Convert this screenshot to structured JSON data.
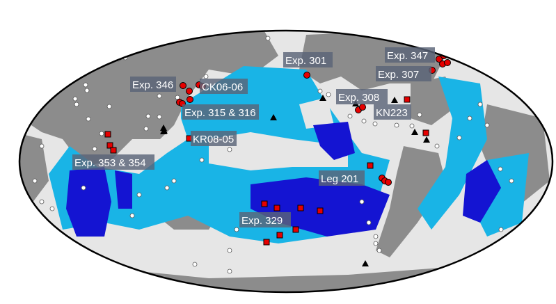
{
  "map": {
    "projection": "mollweide",
    "colors": {
      "land": "#8c8c8c",
      "seafloor": "#e6e6e6",
      "light_blue_zone": "#19b4e6",
      "dark_blue_zone": "#1414d2",
      "site_circle": "#e60000",
      "site_square": "#e60000",
      "triangle": "#000000",
      "white_dot": "#ffffff",
      "label_box": "#5a6478"
    },
    "labels": [
      {
        "id": "exp-301",
        "text": "Exp. 301"
      },
      {
        "id": "exp-347",
        "text": "Exp. 347"
      },
      {
        "id": "exp-307",
        "text": "Exp. 307"
      },
      {
        "id": "exp-346",
        "text": "Exp. 346"
      },
      {
        "id": "ck06-06",
        "text": "CK06-06"
      },
      {
        "id": "exp-308",
        "text": "Exp. 308"
      },
      {
        "id": "kn223",
        "text": "KN223"
      },
      {
        "id": "exp-315-316",
        "text": "Exp. 315 & 316"
      },
      {
        "id": "kr08-05",
        "text": "KR08-05"
      },
      {
        "id": "exp-353-354",
        "text": "Exp. 353 & 354"
      },
      {
        "id": "leg-201",
        "text": "Leg 201"
      },
      {
        "id": "exp-329",
        "text": "Exp. 329"
      }
    ]
  }
}
